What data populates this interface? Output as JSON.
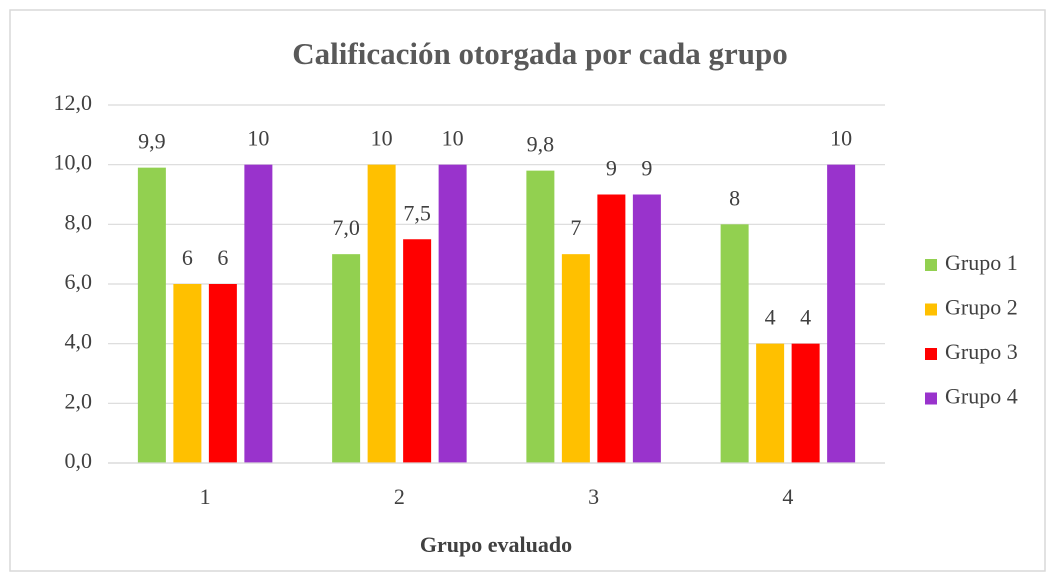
{
  "chart_data": {
    "type": "bar",
    "title": "Calificación otorgada por cada grupo",
    "x_label": "Grupo evaluado",
    "categories": [
      "1",
      "2",
      "3",
      "4"
    ],
    "series": [
      {
        "name": "Grupo 1",
        "color": "#92d050",
        "values": [
          9.9,
          7.0,
          9.8,
          8
        ],
        "value_labels": [
          "9,9",
          "7,0",
          "9,8",
          "8"
        ]
      },
      {
        "name": "Grupo 2",
        "color": "#ffc000",
        "values": [
          6,
          10,
          7,
          4
        ],
        "value_labels": [
          "6",
          "10",
          "7",
          "4"
        ]
      },
      {
        "name": "Grupo 3",
        "color": "#ff0000",
        "values": [
          6,
          7.5,
          9,
          4
        ],
        "value_labels": [
          "6",
          "7,5",
          "9",
          "4"
        ]
      },
      {
        "name": "Grupo 4",
        "color": "#9933cc",
        "values": [
          10,
          10,
          9,
          10
        ],
        "value_labels": [
          "10",
          "10",
          "9",
          "10"
        ]
      }
    ],
    "ylim": [
      0,
      12
    ],
    "yticks": [
      {
        "value": 0,
        "label": "0,0"
      },
      {
        "value": 2,
        "label": "2,0"
      },
      {
        "value": 4,
        "label": "4,0"
      },
      {
        "value": 6,
        "label": "6,0"
      },
      {
        "value": 8,
        "label": "8,0"
      },
      {
        "value": 10,
        "label": "10,0"
      },
      {
        "value": 12,
        "label": "12,0"
      }
    ],
    "grid": true,
    "legend": "right"
  }
}
